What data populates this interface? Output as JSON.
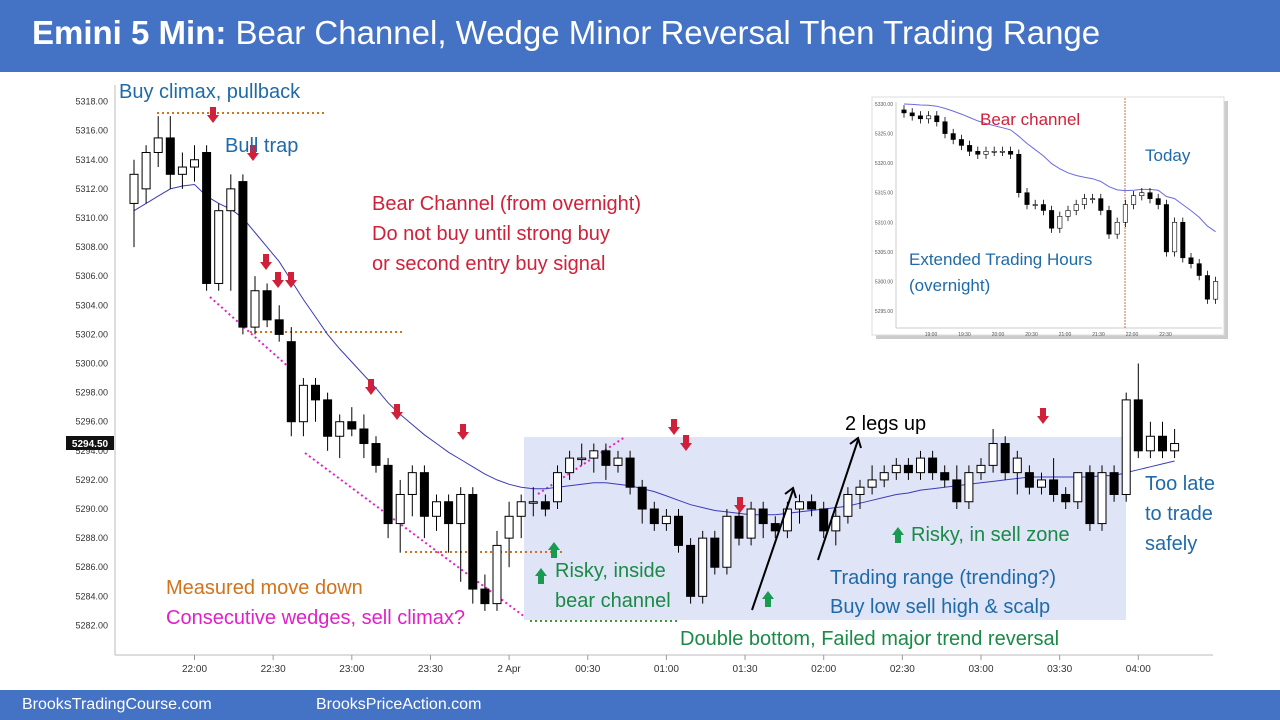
{
  "title": {
    "bold": "Emini 5 Min:",
    "rest": "Bear Channel, Wedge Minor Reversal Then Trading Range"
  },
  "footer": {
    "left": "BrooksTradingCourse.com",
    "right": "BrooksPriceAction.com"
  },
  "colors": {
    "banner": "#4472C4",
    "ema": "#3b3bb5",
    "red_arrow": "#d0203a",
    "green_arrow": "#1a9a50",
    "orange": "#d2731c",
    "magenta": "#e020c8",
    "green_dot": "#3a9a3a",
    "range_box": "#dfe4f7"
  },
  "chart_data": {
    "type": "candlestick",
    "title": "Emini 5 Min",
    "ylim": [
      5281,
      5319
    ],
    "y_ticks": [
      "5318.00",
      "5316.00",
      "5314.00",
      "5312.00",
      "5310.00",
      "5308.00",
      "5306.00",
      "5304.00",
      "5302.00",
      "5300.00",
      "5298.00",
      "5296.00",
      "5294.00",
      "5292.00",
      "5290.00",
      "5288.00",
      "5286.00",
      "5284.00",
      "5282.00"
    ],
    "x_ticks": [
      "22:00",
      "22:30",
      "23:00",
      "23:30",
      "2 Apr",
      "00:30",
      "01:00",
      "01:30",
      "02:00",
      "02:30",
      "03:00",
      "03:30",
      "04:00"
    ],
    "last_price": "5294.50",
    "bars": [
      {
        "o": 5311,
        "h": 5314,
        "l": 5308,
        "c": 5313
      },
      {
        "o": 5312,
        "h": 5315,
        "l": 5311,
        "c": 5314.5
      },
      {
        "o": 5314.5,
        "h": 5317,
        "l": 5313.5,
        "c": 5315.5
      },
      {
        "o": 5315.5,
        "h": 5317,
        "l": 5312,
        "c": 5313
      },
      {
        "o": 5313,
        "h": 5314.5,
        "l": 5312,
        "c": 5313.5
      },
      {
        "o": 5313.5,
        "h": 5315,
        "l": 5312.5,
        "c": 5314
      },
      {
        "o": 5314.5,
        "h": 5315,
        "l": 5305,
        "c": 5305.5
      },
      {
        "o": 5305.5,
        "h": 5311,
        "l": 5305,
        "c": 5310.5
      },
      {
        "o": 5310.5,
        "h": 5313,
        "l": 5305,
        "c": 5312
      },
      {
        "o": 5312.5,
        "h": 5313,
        "l": 5302,
        "c": 5302.5
      },
      {
        "o": 5302.5,
        "h": 5306,
        "l": 5302,
        "c": 5305
      },
      {
        "o": 5305,
        "h": 5305.5,
        "l": 5302.5,
        "c": 5303
      },
      {
        "o": 5303,
        "h": 5304,
        "l": 5301.5,
        "c": 5302
      },
      {
        "o": 5301.5,
        "h": 5302.5,
        "l": 5295,
        "c": 5296
      },
      {
        "o": 5296,
        "h": 5299,
        "l": 5295,
        "c": 5298.5
      },
      {
        "o": 5298.5,
        "h": 5299,
        "l": 5296,
        "c": 5297.5
      },
      {
        "o": 5297.5,
        "h": 5298,
        "l": 5294,
        "c": 5295
      },
      {
        "o": 5295,
        "h": 5296.5,
        "l": 5293.5,
        "c": 5296
      },
      {
        "o": 5296,
        "h": 5297,
        "l": 5295,
        "c": 5295.5
      },
      {
        "o": 5295.5,
        "h": 5296.5,
        "l": 5293.5,
        "c": 5294.5
      },
      {
        "o": 5294.5,
        "h": 5295,
        "l": 5292.5,
        "c": 5293
      },
      {
        "o": 5293,
        "h": 5293.5,
        "l": 5288,
        "c": 5289
      },
      {
        "o": 5289,
        "h": 5292,
        "l": 5287,
        "c": 5291
      },
      {
        "o": 5291,
        "h": 5293,
        "l": 5289.5,
        "c": 5292.5
      },
      {
        "o": 5292.5,
        "h": 5293,
        "l": 5288,
        "c": 5289.5
      },
      {
        "o": 5289.5,
        "h": 5291,
        "l": 5288.5,
        "c": 5290.5
      },
      {
        "o": 5290.5,
        "h": 5291,
        "l": 5287,
        "c": 5289
      },
      {
        "o": 5289,
        "h": 5291.5,
        "l": 5285,
        "c": 5291
      },
      {
        "o": 5291,
        "h": 5291.5,
        "l": 5283.5,
        "c": 5284.5
      },
      {
        "o": 5284.5,
        "h": 5285.5,
        "l": 5283,
        "c": 5283.5
      },
      {
        "o": 5283.5,
        "h": 5288.5,
        "l": 5283,
        "c": 5287.5
      },
      {
        "o": 5288,
        "h": 5290.5,
        "l": 5286,
        "c": 5289.5
      },
      {
        "o": 5289.5,
        "h": 5291,
        "l": 5288,
        "c": 5290.5
      },
      {
        "o": 5290.5,
        "h": 5291.5,
        "l": 5289.5,
        "c": 5290.5
      },
      {
        "o": 5290.5,
        "h": 5291,
        "l": 5289.5,
        "c": 5290
      },
      {
        "o": 5290.5,
        "h": 5293,
        "l": 5290,
        "c": 5292.5
      },
      {
        "o": 5292.5,
        "h": 5294,
        "l": 5292,
        "c": 5293.5
      },
      {
        "o": 5293.5,
        "h": 5294.5,
        "l": 5293,
        "c": 5293.5
      },
      {
        "o": 5293.5,
        "h": 5294.5,
        "l": 5292.5,
        "c": 5294
      },
      {
        "o": 5294,
        "h": 5294.5,
        "l": 5292,
        "c": 5293
      },
      {
        "o": 5293,
        "h": 5294,
        "l": 5292.5,
        "c": 5293.5
      },
      {
        "o": 5293.5,
        "h": 5294,
        "l": 5291,
        "c": 5291.5
      },
      {
        "o": 5291.5,
        "h": 5292,
        "l": 5289,
        "c": 5290
      },
      {
        "o": 5290,
        "h": 5290.5,
        "l": 5288.5,
        "c": 5289
      },
      {
        "o": 5289,
        "h": 5290,
        "l": 5288.5,
        "c": 5289.5
      },
      {
        "o": 5289.5,
        "h": 5290,
        "l": 5287,
        "c": 5287.5
      },
      {
        "o": 5287.5,
        "h": 5288,
        "l": 5283.5,
        "c": 5284
      },
      {
        "o": 5284,
        "h": 5288.5,
        "l": 5283.5,
        "c": 5288
      },
      {
        "o": 5288,
        "h": 5288.5,
        "l": 5285.5,
        "c": 5286
      },
      {
        "o": 5286,
        "h": 5290,
        "l": 5285.5,
        "c": 5289.5
      },
      {
        "o": 5289.5,
        "h": 5290.5,
        "l": 5287.5,
        "c": 5288
      },
      {
        "o": 5288,
        "h": 5290.5,
        "l": 5287.5,
        "c": 5290
      },
      {
        "o": 5290,
        "h": 5290.5,
        "l": 5288,
        "c": 5289
      },
      {
        "o": 5289,
        "h": 5289.5,
        "l": 5288,
        "c": 5288.5
      },
      {
        "o": 5288.5,
        "h": 5290.5,
        "l": 5288,
        "c": 5290
      },
      {
        "o": 5290,
        "h": 5291,
        "l": 5289,
        "c": 5290.5
      },
      {
        "o": 5290.5,
        "h": 5291,
        "l": 5289.5,
        "c": 5290
      },
      {
        "o": 5290,
        "h": 5290.5,
        "l": 5288,
        "c": 5288.5
      },
      {
        "o": 5288.5,
        "h": 5290,
        "l": 5287.5,
        "c": 5289.5
      },
      {
        "o": 5289.5,
        "h": 5291.5,
        "l": 5289,
        "c": 5291
      },
      {
        "o": 5291,
        "h": 5292,
        "l": 5290,
        "c": 5291.5
      },
      {
        "o": 5291.5,
        "h": 5293,
        "l": 5291,
        "c": 5292
      },
      {
        "o": 5292,
        "h": 5293,
        "l": 5291.5,
        "c": 5292.5
      },
      {
        "o": 5292.5,
        "h": 5293.5,
        "l": 5292,
        "c": 5293
      },
      {
        "o": 5293,
        "h": 5293.5,
        "l": 5292,
        "c": 5292.5
      },
      {
        "o": 5292.5,
        "h": 5294,
        "l": 5292,
        "c": 5293.5
      },
      {
        "o": 5293.5,
        "h": 5294,
        "l": 5292,
        "c": 5292.5
      },
      {
        "o": 5292.5,
        "h": 5293,
        "l": 5291.5,
        "c": 5292
      },
      {
        "o": 5292,
        "h": 5293,
        "l": 5290,
        "c": 5290.5
      },
      {
        "o": 5290.5,
        "h": 5293,
        "l": 5290,
        "c": 5292.5
      },
      {
        "o": 5292.5,
        "h": 5293.5,
        "l": 5292,
        "c": 5293
      },
      {
        "o": 5293,
        "h": 5295.5,
        "l": 5292.5,
        "c": 5294.5
      },
      {
        "o": 5294.5,
        "h": 5295,
        "l": 5292,
        "c": 5292.5
      },
      {
        "o": 5292.5,
        "h": 5294,
        "l": 5291,
        "c": 5293.5
      },
      {
        "o": 5292.5,
        "h": 5293,
        "l": 5291,
        "c": 5291.5
      },
      {
        "o": 5291.5,
        "h": 5292.5,
        "l": 5291,
        "c": 5292
      },
      {
        "o": 5292,
        "h": 5293.5,
        "l": 5290.5,
        "c": 5291
      },
      {
        "o": 5291,
        "h": 5291.5,
        "l": 5290,
        "c": 5290.5
      },
      {
        "o": 5290.5,
        "h": 5292.5,
        "l": 5290,
        "c": 5292.5
      },
      {
        "o": 5292.5,
        "h": 5293,
        "l": 5288.5,
        "c": 5289
      },
      {
        "o": 5289,
        "h": 5293,
        "l": 5288.5,
        "c": 5292.5
      },
      {
        "o": 5292.5,
        "h": 5293,
        "l": 5290.5,
        "c": 5291
      },
      {
        "o": 5291,
        "h": 5298,
        "l": 5290.5,
        "c": 5297.5
      },
      {
        "o": 5297.5,
        "h": 5300,
        "l": 5293.5,
        "c": 5294
      },
      {
        "o": 5294,
        "h": 5296,
        "l": 5293.5,
        "c": 5295
      },
      {
        "o": 5295,
        "h": 5296,
        "l": 5293.5,
        "c": 5294
      },
      {
        "o": 5294,
        "h": 5295.5,
        "l": 5293.5,
        "c": 5294.5
      }
    ],
    "ema": [
      5310.5,
      5311,
      5311.5,
      5312,
      5312.2,
      5312.3,
      5311.5,
      5311,
      5310.6,
      5310,
      5309,
      5308,
      5307,
      5305.7,
      5304.4,
      5303.2,
      5302,
      5301,
      5300.1,
      5299.2,
      5298.3,
      5297.3,
      5296.5,
      5295.8,
      5295.1,
      5294.5,
      5293.9,
      5293.4,
      5292.9,
      5292.4,
      5292,
      5291.7,
      5291.5,
      5291.4,
      5291.4,
      5291.5,
      5291.6,
      5291.7,
      5291.8,
      5291.8,
      5291.7,
      5291.6,
      5291.4,
      5291.2,
      5290.9,
      5290.6,
      5290.3,
      5290.1,
      5289.9,
      5289.8,
      5289.7,
      5289.6,
      5289.6,
      5289.6,
      5289.7,
      5289.8,
      5289.9,
      5290,
      5290.1,
      5290.2,
      5290.4,
      5290.6,
      5290.8,
      5291,
      5291.1,
      5291.3,
      5291.4,
      5291.5,
      5291.6,
      5291.7,
      5291.8,
      5291.9,
      5292,
      5292.1,
      5292.2,
      5292.2,
      5292.2,
      5292.2,
      5292.2,
      5292.2,
      5292.3,
      5292.3,
      5292.5,
      5292.7,
      5292.9,
      5293.1,
      5293.3
    ]
  },
  "annotations": {
    "buy_climax": "Buy climax, pullback",
    "bull_trap": "Bull trap",
    "bear_channel_1": "Bear Channel (from overnight)",
    "bear_channel_2": "Do not buy until strong buy",
    "bear_channel_3": "or second entry buy signal",
    "two_legs_up": "2 legs up",
    "measured_move": "Measured move down",
    "consecutive_wedges": "Consecutive wedges, sell climax?",
    "risky_inside_1": "Risky, inside",
    "risky_inside_2": "bear channel",
    "double_bottom": "Double bottom, Failed major trend reversal",
    "trading_range_1": "Trading range (trending?)",
    "trading_range_2": "Buy low sell high & scalp",
    "risky_sell_zone": "Risky, in sell zone",
    "too_late_1": "Too late",
    "too_late_2": "to trade",
    "too_late_3": "safely"
  },
  "inset": {
    "bear_channel": "Bear channel",
    "today": "Today",
    "eth_1": "Extended Trading Hours",
    "eth_2": "(overnight)",
    "y_ticks": [
      "5330.00",
      "5325.00",
      "5320.00",
      "5315.00",
      "5310.00",
      "5305.00",
      "5300.00",
      "5295.00"
    ],
    "x_ticks": [
      "19:00",
      "19:30",
      "20:00",
      "20:30",
      "21:00",
      "21:30",
      "22:00",
      "22:30"
    ],
    "closes": [
      5328.5,
      5328,
      5327.5,
      5328,
      5327,
      5325,
      5324,
      5323,
      5322,
      5321.5,
      5322,
      5322,
      5322,
      5321.5,
      5315,
      5313,
      5313,
      5312,
      5309,
      5311,
      5312,
      5313,
      5314,
      5314,
      5312,
      5308,
      5310,
      5313,
      5314.5,
      5315,
      5314,
      5313,
      5305,
      5310,
      5304,
      5303,
      5301,
      5297,
      5300
    ]
  }
}
